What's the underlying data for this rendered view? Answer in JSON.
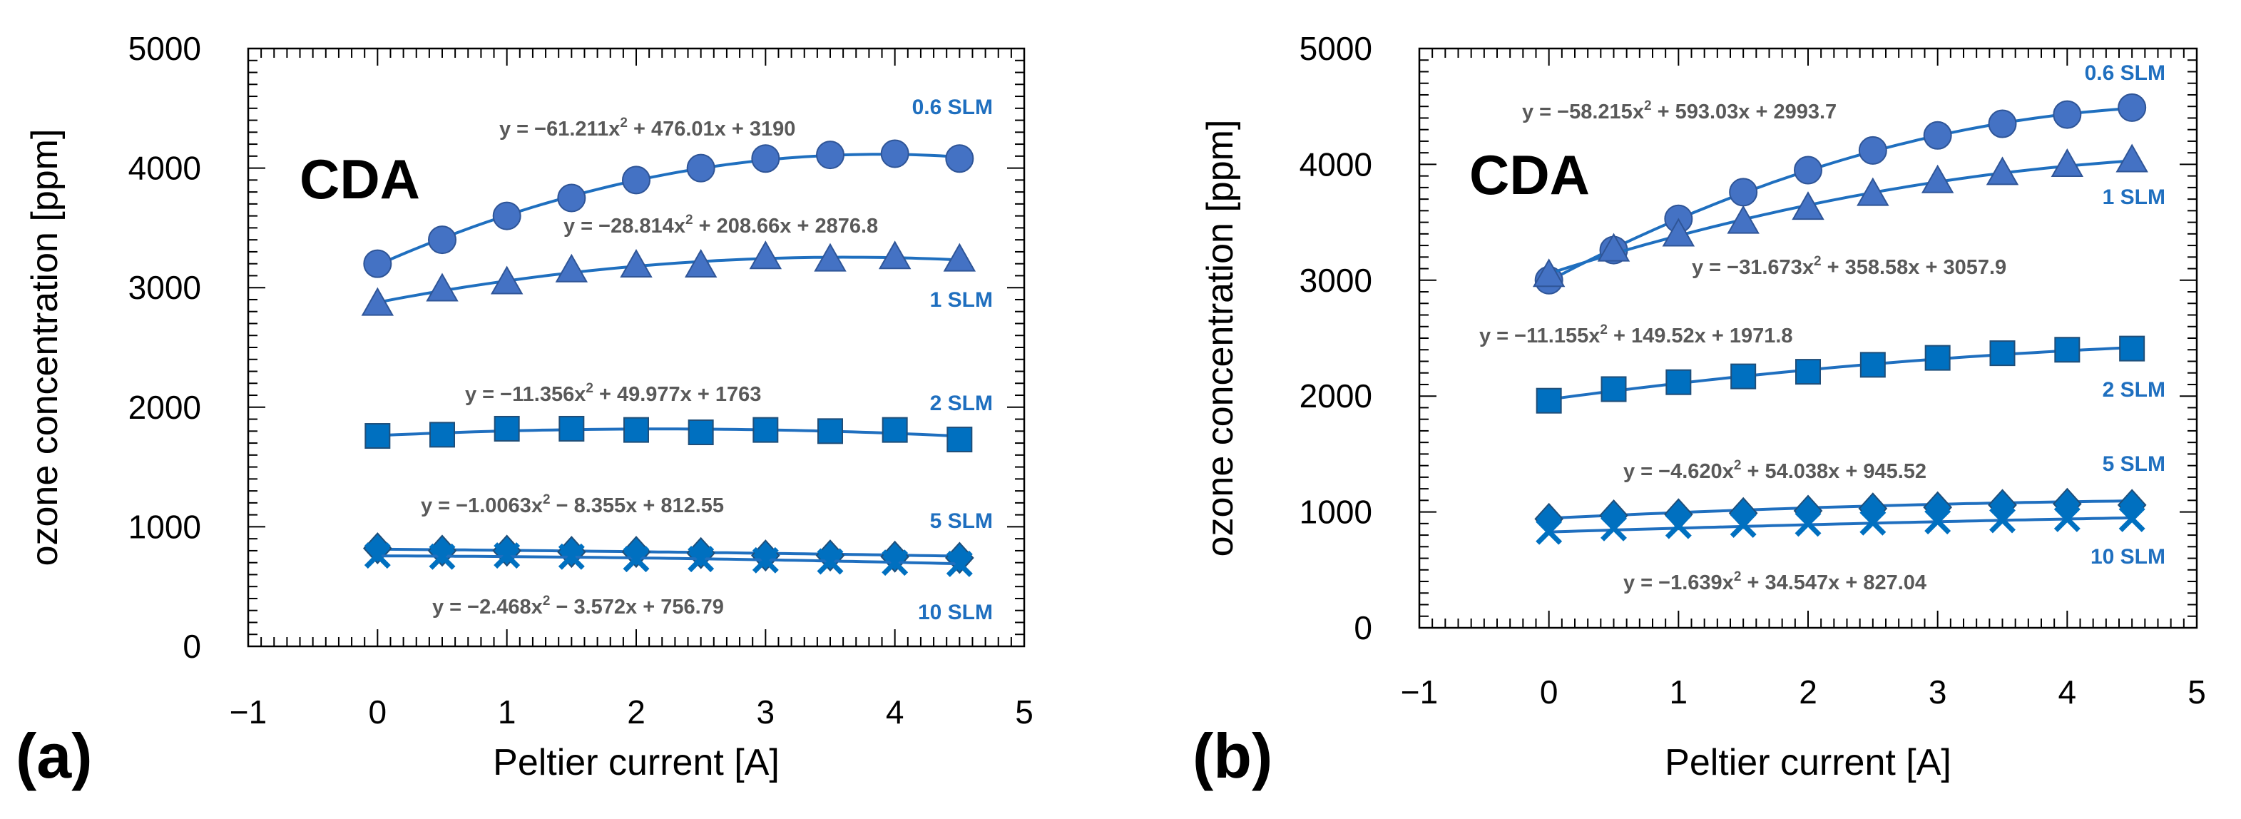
{
  "chart_data": [
    {
      "type": "scatter",
      "panel_label": "(a)",
      "annotation": "CDA",
      "xlabel": "Peltier current [A]",
      "ylabel": "ozone concentration [ppm]",
      "xlim": [
        -1,
        5
      ],
      "ylim": [
        0,
        5000
      ],
      "xticks": [
        "−1",
        "0",
        "1",
        "2",
        "3",
        "4",
        "5"
      ],
      "yticks": [
        "0",
        "1000",
        "2000",
        "3000",
        "4000",
        "5000"
      ],
      "x": [
        0,
        0.5,
        1,
        1.5,
        2,
        2.5,
        3,
        3.5,
        4,
        4.5
      ],
      "series": [
        {
          "name": "0.6 SLM",
          "marker": "circle",
          "values": [
            3200,
            3400,
            3600,
            3750,
            3900,
            4000,
            4080,
            4110,
            4120,
            4080
          ],
          "fit": {
            "equation": "y = −61.211x",
            "exp": "2",
            "rest": " + 476.01x + 3190",
            "a": -61.211,
            "b": 476.01,
            "c": 3190
          }
        },
        {
          "name": "1 SLM",
          "marker": "triangle",
          "values": [
            2860,
            2980,
            3040,
            3140,
            3180,
            3180,
            3250,
            3230,
            3250,
            3230
          ],
          "fit": {
            "equation": "y = −28.814x",
            "exp": "2",
            "rest": " + 208.66x + 2876.8",
            "a": -28.814,
            "b": 208.66,
            "c": 2876.8
          }
        },
        {
          "name": "2 SLM",
          "marker": "square",
          "values": [
            1760,
            1770,
            1820,
            1820,
            1810,
            1790,
            1810,
            1800,
            1810,
            1730
          ],
          "fit": {
            "equation": "y = −11.356x",
            "exp": "2",
            "rest": " + 49.977x + 1763",
            "a": -11.356,
            "b": 49.977,
            "c": 1763
          }
        },
        {
          "name": "5 SLM",
          "marker": "diamond",
          "values": [
            820,
            800,
            800,
            790,
            790,
            780,
            760,
            760,
            750,
            740
          ],
          "fit": {
            "equation": "y = −1.0063x",
            "exp": "2",
            "rest": " − 8.355x + 812.55",
            "a": -1.0063,
            "b": -8.355,
            "c": 812.55
          }
        },
        {
          "name": "10 SLM",
          "marker": "x",
          "values": [
            760,
            750,
            760,
            750,
            730,
            730,
            720,
            710,
            700,
            690
          ],
          "fit": {
            "equation": "y = −2.468x",
            "exp": "2",
            "rest": " − 3.572x + 756.79",
            "a": -2.468,
            "b": -3.572,
            "c": 756.79
          }
        }
      ]
    },
    {
      "type": "scatter",
      "panel_label": "(b)",
      "annotation": "CDA",
      "xlabel": "Peltier current [A]",
      "ylabel": "ozone concentration [ppm]",
      "xlim": [
        -1,
        5
      ],
      "ylim": [
        0,
        5000
      ],
      "xticks": [
        "−1",
        "0",
        "1",
        "2",
        "3",
        "4",
        "5"
      ],
      "yticks": [
        "0",
        "1000",
        "2000",
        "3000",
        "4000",
        "5000"
      ],
      "x": [
        0,
        0.5,
        1,
        1.5,
        2,
        2.5,
        3,
        3.5,
        4,
        4.5
      ],
      "series": [
        {
          "name": "0.6 SLM",
          "marker": "circle",
          "values": [
            3000,
            3260,
            3530,
            3760,
            3950,
            4120,
            4250,
            4350,
            4430,
            4490
          ],
          "fit": {
            "equation": "y = −58.215x",
            "exp": "2",
            "rest": " + 593.03x + 2993.7",
            "a": -58.215,
            "b": 593.03,
            "c": 2993.7
          }
        },
        {
          "name": "1 SLM",
          "marker": "triangle",
          "values": [
            3040,
            3260,
            3390,
            3500,
            3620,
            3740,
            3850,
            3920,
            3990,
            4030
          ],
          "fit": {
            "equation": "y = −31.673x",
            "exp": "2",
            "rest": " + 358.58x + 3057.9",
            "a": -31.673,
            "b": 358.58,
            "c": 3057.9
          }
        },
        {
          "name": "2 SLM",
          "marker": "square",
          "values": [
            1960,
            2060,
            2120,
            2170,
            2210,
            2270,
            2330,
            2370,
            2400,
            2410
          ],
          "fit": {
            "equation": "y = −11.155x",
            "exp": "2",
            "rest": " + 149.52x + 1971.8",
            "a": -11.155,
            "b": 149.52,
            "c": 1971.8
          }
        },
        {
          "name": "5 SLM",
          "marker": "diamond",
          "values": [
            940,
            970,
            980,
            990,
            1010,
            1030,
            1040,
            1060,
            1070,
            1060
          ],
          "fit": {
            "equation": "y = −4.620x",
            "exp": "2",
            "rest": " + 54.038x + 945.52",
            "a": -4.62,
            "b": 54.038,
            "c": 945.52
          }
        },
        {
          "name": "10 SLM",
          "marker": "x",
          "values": [
            830,
            860,
            880,
            890,
            900,
            910,
            920,
            930,
            940,
            940
          ],
          "fit": {
            "equation": "y = −1.639x",
            "exp": "2",
            "rest": " + 34.547x + 827.04",
            "a": -1.639,
            "b": 34.547,
            "c": 827.04
          }
        }
      ]
    }
  ],
  "colors": {
    "marker": "#4472c4",
    "marker_dark": "#0070c0",
    "fit_line": "#1f6fbf",
    "equation": "#595959",
    "series_label": "#1f6fbf"
  }
}
